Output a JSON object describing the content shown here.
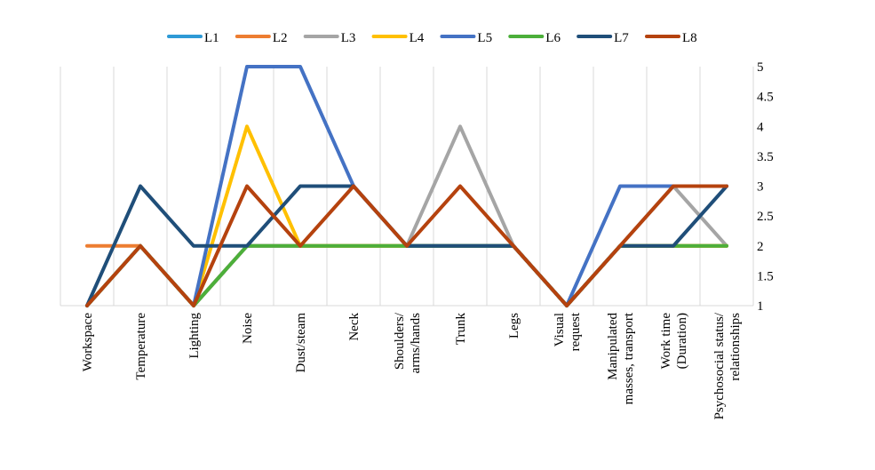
{
  "chart_data": {
    "type": "line",
    "title": "",
    "xlabel": "",
    "ylabel": "",
    "categories": [
      [
        "Workspace"
      ],
      [
        "Temperature"
      ],
      [
        "Lighting"
      ],
      [
        "Noise"
      ],
      [
        "Dust/steam"
      ],
      [
        "Neck"
      ],
      [
        "Shoulders/",
        "arms/hands"
      ],
      [
        "Trunk"
      ],
      [
        "Legs"
      ],
      [
        "Visual",
        "request"
      ],
      [
        "Manipulated",
        "masses, transport"
      ],
      [
        "Work time",
        "(Duration)"
      ],
      [
        "Psychosocial status/",
        "relationships"
      ]
    ],
    "ylim": [
      1,
      5
    ],
    "yticks": [
      "1",
      "1.5",
      "2",
      "2.5",
      "3",
      "3.5",
      "4",
      "4.5",
      "5"
    ],
    "y_axis_side": "right",
    "grid": "vertical",
    "legend_position": "top",
    "series": [
      {
        "name": "L1",
        "color": "#2E9AD6",
        "values": [
          1,
          2,
          1,
          2,
          2,
          2,
          2,
          2,
          2,
          1,
          2,
          2,
          2
        ]
      },
      {
        "name": "L2",
        "color": "#ED7D31",
        "values": [
          2,
          2,
          1,
          2,
          2,
          2,
          2,
          2,
          2,
          1,
          2,
          2,
          2
        ]
      },
      {
        "name": "L3",
        "color": "#A5A5A5",
        "values": [
          1,
          2,
          1,
          2,
          2,
          2,
          2,
          4,
          2,
          1,
          2,
          3,
          2
        ]
      },
      {
        "name": "L4",
        "color": "#FFC000",
        "values": [
          1,
          2,
          1,
          4,
          2,
          2,
          2,
          2,
          2,
          1,
          2,
          2,
          2
        ]
      },
      {
        "name": "L5",
        "color": "#4472C4",
        "values": [
          1,
          2,
          1,
          5,
          5,
          3,
          2,
          2,
          2,
          1,
          3,
          3,
          3
        ]
      },
      {
        "name": "L6",
        "color": "#4CAF3A",
        "values": [
          1,
          2,
          1,
          2,
          2,
          2,
          2,
          2,
          2,
          1,
          2,
          2,
          2
        ]
      },
      {
        "name": "L7",
        "color": "#1F4E79",
        "values": [
          1,
          3,
          2,
          2,
          3,
          3,
          2,
          2,
          2,
          1,
          2,
          2,
          3
        ]
      },
      {
        "name": "L8",
        "color": "#B5420E",
        "values": [
          1,
          2,
          1,
          3,
          2,
          3,
          2,
          3,
          2,
          1,
          2,
          3,
          3
        ]
      }
    ]
  }
}
